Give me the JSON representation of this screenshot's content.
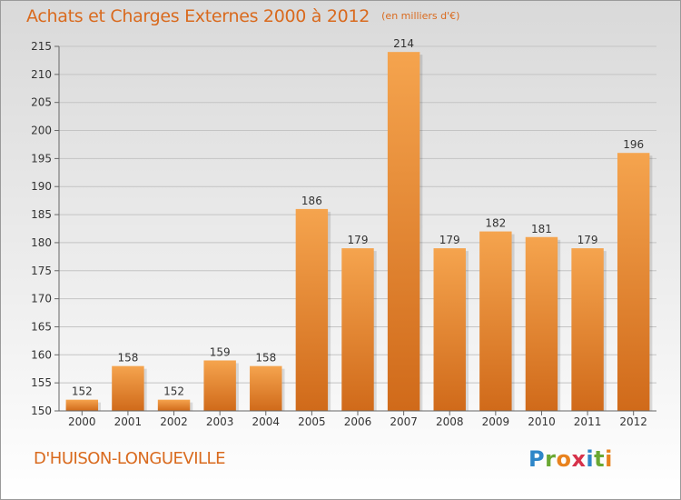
{
  "header": {
    "title": "Achats et Charges Externes 2000 à 2012",
    "unit": "(en milliers d'€)"
  },
  "footer": {
    "place": "D'HUISON-LONGUEVILLE"
  },
  "logo": {
    "text": "Proxiti",
    "letters": [
      {
        "ch": "P",
        "color": "#2e86c8"
      },
      {
        "ch": "r",
        "color": "#6aa833"
      },
      {
        "ch": "o",
        "color": "#e8821e"
      },
      {
        "ch": "x",
        "color": "#d6314a"
      },
      {
        "ch": "i",
        "color": "#2e86c8"
      },
      {
        "ch": "t",
        "color": "#6aa833"
      },
      {
        "ch": "i",
        "color": "#e8821e"
      }
    ]
  },
  "chart_data": {
    "type": "bar",
    "title": "Achats et Charges Externes 2000 à 2012",
    "subtitle": "(en milliers d'€)",
    "categories": [
      "2000",
      "2001",
      "2002",
      "2003",
      "2004",
      "2005",
      "2006",
      "2007",
      "2008",
      "2009",
      "2010",
      "2011",
      "2012"
    ],
    "values": [
      152,
      158,
      152,
      159,
      158,
      186,
      179,
      214,
      179,
      182,
      181,
      179,
      196
    ],
    "ylim": [
      150,
      215
    ],
    "yticks": [
      150,
      155,
      160,
      165,
      170,
      175,
      180,
      185,
      190,
      195,
      200,
      205,
      210,
      215
    ],
    "grid": true,
    "bar_color_top": "#f5a44e",
    "bar_color_bottom": "#d06a1a",
    "xlabel": "",
    "ylabel": ""
  }
}
